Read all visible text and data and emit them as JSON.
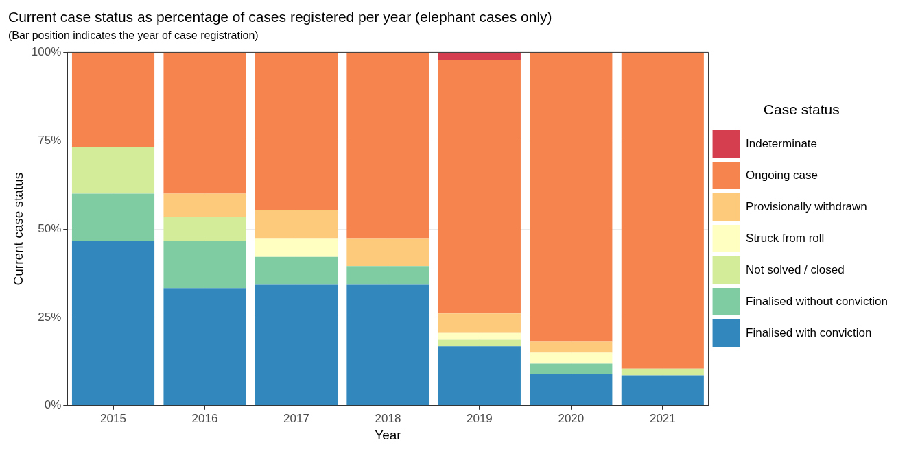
{
  "chart_data": {
    "type": "bar",
    "title": "Current case status as percentage of cases registered per year (elephant cases only)",
    "subtitle": "(Bar position indicates the year of case registration)",
    "xlabel": "Year",
    "ylabel": "Current case status",
    "legend_title": "Case status",
    "categories": [
      "2015",
      "2016",
      "2017",
      "2018",
      "2019",
      "2020",
      "2021"
    ],
    "stacked": true,
    "grid": true,
    "legend": "right",
    "ylim": [
      0,
      100
    ],
    "yticks": [
      {
        "value": 0,
        "label": "0%"
      },
      {
        "value": 25,
        "label": "25%"
      },
      {
        "value": 50,
        "label": "50%"
      },
      {
        "value": 75,
        "label": "75%"
      },
      {
        "value": 100,
        "label": "100%"
      }
    ],
    "series": [
      {
        "name": "Finalised with conviction",
        "color": "#3288bd",
        "values": [
          46.7,
          33.3,
          34.2,
          34.2,
          16.8,
          9.0,
          8.6
        ]
      },
      {
        "name": "Finalised without conviction",
        "color": "#7fcca3",
        "values": [
          13.3,
          13.3,
          7.9,
          5.3,
          null,
          2.9,
          null
        ]
      },
      {
        "name": "Not solved / closed",
        "color": "#d3ec9a",
        "values": [
          13.3,
          6.7,
          null,
          null,
          1.9,
          null,
          1.9
        ]
      },
      {
        "name": "Struck from roll",
        "color": "#ffffc2",
        "values": [
          null,
          null,
          5.3,
          null,
          1.9,
          3.1,
          null
        ]
      },
      {
        "name": "Provisionally withdrawn",
        "color": "#fdc97b",
        "values": [
          null,
          6.7,
          7.9,
          7.9,
          5.5,
          3.1,
          null
        ]
      },
      {
        "name": "Ongoing case",
        "color": "#f6844f",
        "values": [
          26.7,
          40.0,
          44.7,
          52.6,
          71.7,
          81.9,
          89.5
        ]
      },
      {
        "name": "Indeterminate",
        "color": "#d53e4f",
        "values": [
          null,
          null,
          null,
          null,
          2.2,
          null,
          null
        ]
      }
    ]
  }
}
